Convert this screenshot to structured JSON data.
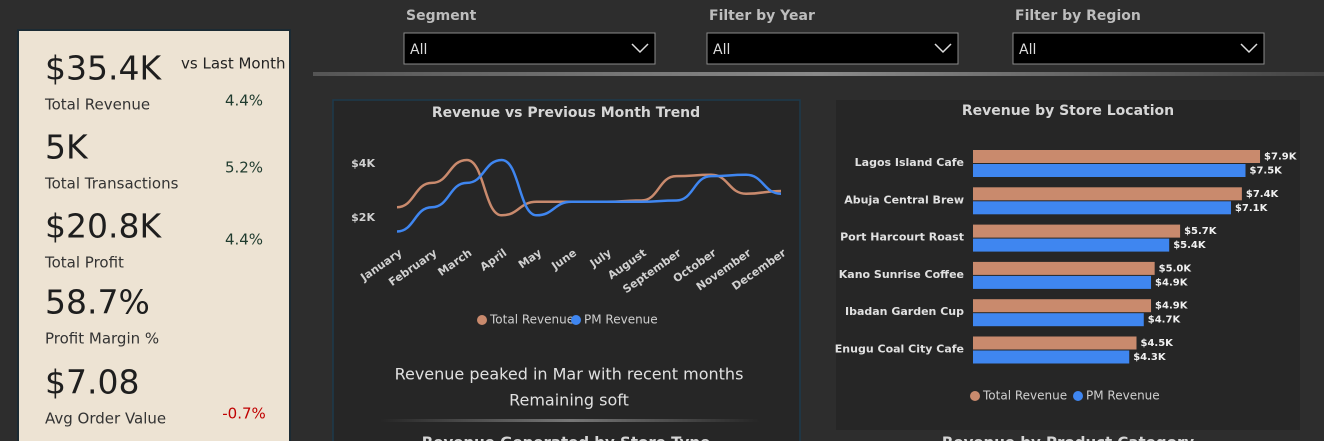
{
  "kpi_header": "vs Last Month",
  "kpis": [
    {
      "value": "$35.4K",
      "label": "Total Revenue",
      "change": "4.4%",
      "color": "#1f3b2e"
    },
    {
      "value": "5K",
      "label": "Total Transactions",
      "change": "5.2%",
      "color": "#1f3b2e"
    },
    {
      "value": "$20.8K",
      "label": "Total Profit",
      "change": "4.4%",
      "color": "#1f3b2e"
    },
    {
      "value": "58.7%",
      "label": "Profit Margin %"
    },
    {
      "value": "$7.08",
      "label": "Avg Order Value",
      "change": "-0.7%",
      "color": "#c00000"
    }
  ],
  "filters": [
    {
      "label": "Segment",
      "value": "All"
    },
    {
      "label": "Filter by Year",
      "value": "All"
    },
    {
      "label": "Filter by Region",
      "value": "All"
    }
  ],
  "chart_data": [
    {
      "type": "line",
      "title": "Revenue vs Previous Month Trend",
      "categories": [
        "January",
        "February",
        "March",
        "April",
        "May",
        "June",
        "July",
        "August",
        "September",
        "October",
        "November",
        "December"
      ],
      "series": [
        {
          "name": "Total Revenue",
          "color": "#c98a6d",
          "values": [
            2400,
            3300,
            4150,
            2100,
            2600,
            2600,
            2600,
            2650,
            3550,
            3600,
            2900,
            3000
          ]
        },
        {
          "name": "PM Revenue",
          "color": "#3f86f0",
          "values": [
            1500,
            2400,
            3300,
            4150,
            2100,
            2600,
            2600,
            2600,
            2650,
            3550,
            3600,
            2900
          ]
        }
      ],
      "ylim": [
        1000,
        4500
      ],
      "yticks": [
        {
          "value": 2000,
          "label": "$2K"
        },
        {
          "value": 4000,
          "label": "$4K"
        }
      ],
      "annotation": [
        "Revenue peaked in Mar with recent months",
        "Remaining soft"
      ]
    },
    {
      "type": "hbar",
      "title": "Revenue by Store Location",
      "categories": [
        "Lagos Island Cafe",
        "Abuja Central Brew",
        "Port Harcourt Roast",
        "Kano Sunrise Coffee",
        "Ibadan Garden Cup",
        "Enugu Coal City Cafe"
      ],
      "series": [
        {
          "name": "Total Revenue",
          "color": "#c98a6d",
          "values": [
            7900,
            7400,
            5700,
            5000,
            4900,
            4500
          ],
          "value_labels": [
            "$7.9K",
            "$7.4K",
            "$5.7K",
            "$5.0K",
            "$4.9K",
            "$4.5K"
          ]
        },
        {
          "name": "PM Revenue",
          "color": "#3f86f0",
          "values": [
            7500,
            7100,
            5400,
            4900,
            4700,
            4300
          ],
          "value_labels": [
            "$7.5K",
            "$7.1K",
            "$5.4K",
            "$4.9K",
            "$4.7K",
            "$4.3K"
          ]
        }
      ],
      "xlim": [
        0,
        9000
      ]
    },
    {
      "type": "bar",
      "title": "Revenue Generated by Store Type"
    },
    {
      "type": "bar",
      "title": "Revenue by Product Category"
    }
  ]
}
